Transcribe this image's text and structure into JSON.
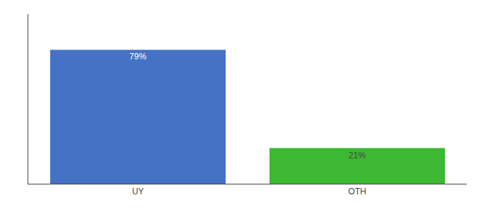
{
  "chart_data": {
    "type": "bar",
    "categories": [
      "UY",
      "OTH"
    ],
    "values": [
      79,
      21
    ],
    "value_labels": [
      "79%",
      "21%"
    ],
    "data_labels": true,
    "colors": [
      "#4472c4",
      "#3cb832"
    ],
    "ylim": [
      0,
      100
    ],
    "yticks": [],
    "tick_labels": "x",
    "grid": false
  }
}
